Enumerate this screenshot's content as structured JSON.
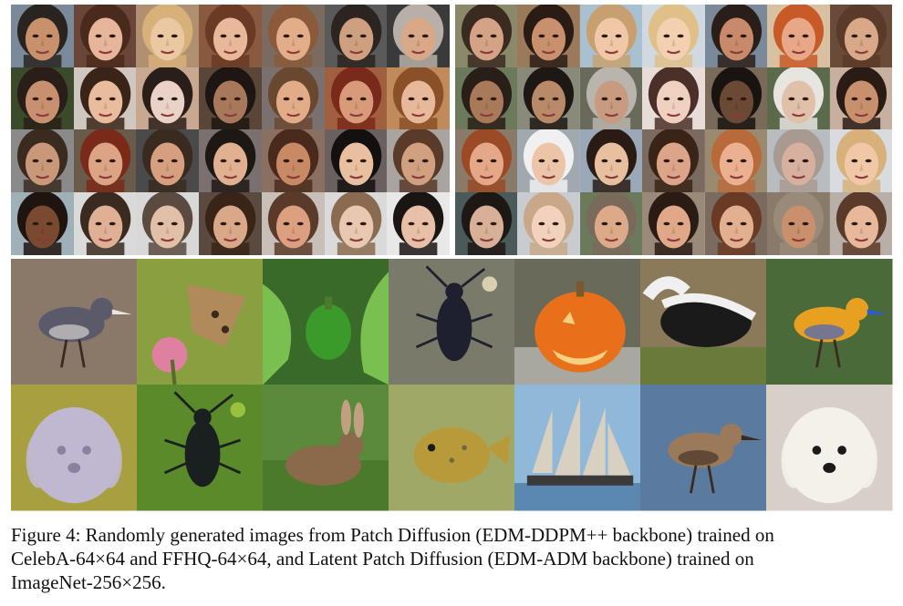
{
  "figure": {
    "caption_lines": [
      "Figure 4: Randomly generated images from Patch Diffusion (EDM-DDPM++ backbone) trained on",
      "CelebA-64×64 and FFHQ-64×64, and Latent Patch Diffusion (EDM-ADM backbone) trained on",
      "ImageNet-256×256."
    ]
  },
  "celeba": {
    "cols": 7,
    "rows": 4,
    "tiles": [
      {
        "skin": "#c8916c",
        "hair": "#2a2420",
        "bg": "#7a8a9a"
      },
      {
        "skin": "#e6b59a",
        "hair": "#4a2a1c",
        "bg": "#6a4638"
      },
      {
        "skin": "#eac9a2",
        "hair": "#d8b07a",
        "bg": "#b09070"
      },
      {
        "skin": "#e9b89a",
        "hair": "#6a3a24",
        "bg": "#8a5a40"
      },
      {
        "skin": "#e2ae8a",
        "hair": "#8a5a3a",
        "bg": "#7a6a60"
      },
      {
        "skin": "#cfa080",
        "hair": "#2c2420",
        "bg": "#5a5a5a"
      },
      {
        "skin": "#d8a888",
        "hair": "#b8b0a8",
        "bg": "#3a3a3a"
      },
      {
        "skin": "#c89070",
        "hair": "#2a1e18",
        "bg": "#3a4a2a"
      },
      {
        "skin": "#e8bc9c",
        "hair": "#3a2418",
        "bg": "#d0c8c0"
      },
      {
        "skin": "#ead2c8",
        "hair": "#2a1e1a",
        "bg": "#c8a890"
      },
      {
        "skin": "#a8785a",
        "hair": "#1e1612",
        "bg": "#5a4638"
      },
      {
        "skin": "#e2ac88",
        "hair": "#6a4830",
        "bg": "#7a7070"
      },
      {
        "skin": "#d89a78",
        "hair": "#7a2a1a",
        "bg": "#a06040"
      },
      {
        "skin": "#e8b89a",
        "hair": "#8a5028",
        "bg": "#c08a5a"
      },
      {
        "skin": "#c89878",
        "hair": "#3a2a20",
        "bg": "#8a8a8a"
      },
      {
        "skin": "#dca484",
        "hair": "#7a2a18",
        "bg": "#6a5a4a"
      },
      {
        "skin": "#d6a080",
        "hair": "#3a2a20",
        "bg": "#4a4a4a"
      },
      {
        "skin": "#e0b090",
        "hair": "#1e1814",
        "bg": "#7a7070"
      },
      {
        "skin": "#c88a64",
        "hair": "#4a2a1c",
        "bg": "#8a7060"
      },
      {
        "skin": "#e8c0a0",
        "hair": "#141010",
        "bg": "#6a6060"
      },
      {
        "skin": "#d0a080",
        "hair": "#5a3a28",
        "bg": "#aaa4a0"
      },
      {
        "skin": "#7a4a30",
        "hair": "#1e1410",
        "bg": "#a0b0b8"
      },
      {
        "skin": "#e0b094",
        "hair": "#3a2a20",
        "bg": "#dadada"
      },
      {
        "skin": "#e2c0a8",
        "hair": "#5a4a40",
        "bg": "#d8d8d8"
      },
      {
        "skin": "#d8a888",
        "hair": "#3a2418",
        "bg": "#5a4a40"
      },
      {
        "skin": "#dca080",
        "hair": "#5a3a28",
        "bg": "#c8c0b8"
      },
      {
        "skin": "#e8c8b0",
        "hair": "#8a6a50",
        "bg": "#dadada"
      },
      {
        "skin": "#e8c0a8",
        "hair": "#1a1412",
        "bg": "#e8e8e8"
      }
    ]
  },
  "ffhq": {
    "cols": 7,
    "rows": 4,
    "tiles": [
      {
        "skin": "#d4a284",
        "hair": "#3a2a20",
        "bg": "#8a8a6a"
      },
      {
        "skin": "#c8906c",
        "hair": "#2a1c14",
        "bg": "#9a7a5a"
      },
      {
        "skin": "#f0c8a8",
        "hair": "#c8a070",
        "bg": "#a8c0d0"
      },
      {
        "skin": "#f2d0b0",
        "hair": "#e0c088",
        "bg": "#d0d8e0"
      },
      {
        "skin": "#c88a6a",
        "hair": "#2a1e18",
        "bg": "#7a8a9a"
      },
      {
        "skin": "#e8a888",
        "hair": "#c85a28",
        "bg": "#d8c0a0"
      },
      {
        "skin": "#d8a888",
        "hair": "#5a3a28",
        "bg": "#6a4a38"
      },
      {
        "skin": "#a87a5a",
        "hair": "#2a1e18",
        "bg": "#6a7a5a"
      },
      {
        "skin": "#b88a6a",
        "hair": "#1e1814",
        "bg": "#8a8a7a"
      },
      {
        "skin": "#c89a80",
        "hair": "#bab4ae",
        "bg": "#6a6a5a"
      },
      {
        "skin": "#f0d0c0",
        "hair": "#4a3028",
        "bg": "#e8dcd8"
      },
      {
        "skin": "#6a4a34",
        "hair": "#1a1410",
        "bg": "#7a6a5a"
      },
      {
        "skin": "#e0c0a8",
        "hair": "#e8e4e0",
        "bg": "#5a6a4a"
      },
      {
        "skin": "#c8906c",
        "hair": "#2a1c14",
        "bg": "#c8b0a0"
      },
      {
        "skin": "#e4a888",
        "hair": "#9a4a24",
        "bg": "#8a7a6a"
      },
      {
        "skin": "#ecc4a8",
        "hair": "#f0f0f0",
        "bg": "#a0a8b0"
      },
      {
        "skin": "#e8c0a0",
        "hair": "#2a1c14",
        "bg": "#9aa8b8"
      },
      {
        "skin": "#dca488",
        "hair": "#3a2418",
        "bg": "#7a6a60"
      },
      {
        "skin": "#eab090",
        "hair": "#b86a3a",
        "bg": "#9a8a70"
      },
      {
        "skin": "#d8b0a0",
        "hair": "#a89a90",
        "bg": "#b8bcc0"
      },
      {
        "skin": "#f0c8a8",
        "hair": "#d8b07a",
        "bg": "#d8dce0"
      },
      {
        "skin": "#d8b098",
        "hair": "#1e1814",
        "bg": "#4a5a5a"
      },
      {
        "skin": "#f2d2bc",
        "hair": "#c8a888",
        "bg": "#c8ccd0"
      },
      {
        "skin": "#dcaa88",
        "hair": "#7a6a5a",
        "bg": "#6a7a5a"
      },
      {
        "skin": "#e0a888",
        "hair": "#2a1c14",
        "bg": "#9a8a7a"
      },
      {
        "skin": "#e2b090",
        "hair": "#6a3a24",
        "bg": "#7a6a60"
      },
      {
        "skin": "#c8906c",
        "hair": "#9a8a7a",
        "bg": "#8a7a6a"
      },
      {
        "skin": "#e8b89a",
        "hair": "#5a3a28",
        "bg": "#b8b0a8"
      }
    ]
  },
  "imagenet": {
    "cols": 7,
    "rows": 2,
    "tiles": [
      {
        "subject": "sandpiper-bird",
        "bg": "#8a7868",
        "fg": "#5a5a6a",
        "accent": "#e8e4e0"
      },
      {
        "subject": "butterfly-on-flower",
        "bg": "#8aa040",
        "fg": "#b08a5a",
        "accent": "#e080a0"
      },
      {
        "subject": "green-pepper",
        "bg": "#3a6a2a",
        "fg": "#3a9a2a",
        "accent": "#7ac050"
      },
      {
        "subject": "longhorn-beetle",
        "bg": "#7a7a6a",
        "fg": "#1e2030",
        "accent": "#d8d0b0"
      },
      {
        "subject": "jack-o-lantern",
        "bg": "#6a6a5a",
        "fg": "#e8701a",
        "accent": "#f8d080"
      },
      {
        "subject": "skunk",
        "bg": "#8a7a5a",
        "fg": "#1a1a1a",
        "accent": "#f0f0f0"
      },
      {
        "subject": "rainbow-lorikeet",
        "bg": "#4a6a3a",
        "fg": "#e8a020",
        "accent": "#2a5ad8"
      },
      {
        "subject": "bedlington-terrier",
        "bg": "#a8a040",
        "fg": "#c0b8d0",
        "accent": "#8a80a0"
      },
      {
        "subject": "ground-beetle",
        "bg": "#5a8a2a",
        "fg": "#1a2020",
        "accent": "#9ac040"
      },
      {
        "subject": "rabbit",
        "bg": "#5a8a3a",
        "fg": "#8a6a4a",
        "accent": "#c0a080"
      },
      {
        "subject": "pufferfish",
        "bg": "#a0a868",
        "fg": "#b89a3a",
        "accent": "#6a6a3a"
      },
      {
        "subject": "sailing-ship",
        "bg": "#90b8d8",
        "fg": "#d8d0c0",
        "accent": "#3a3a3a"
      },
      {
        "subject": "curlew-bird",
        "bg": "#5a7aa0",
        "fg": "#9a7a5a",
        "accent": "#3a2a20"
      },
      {
        "subject": "poodle-puppy",
        "bg": "#d8d0c8",
        "fg": "#f4f0ea",
        "accent": "#1a1a1a"
      }
    ]
  }
}
